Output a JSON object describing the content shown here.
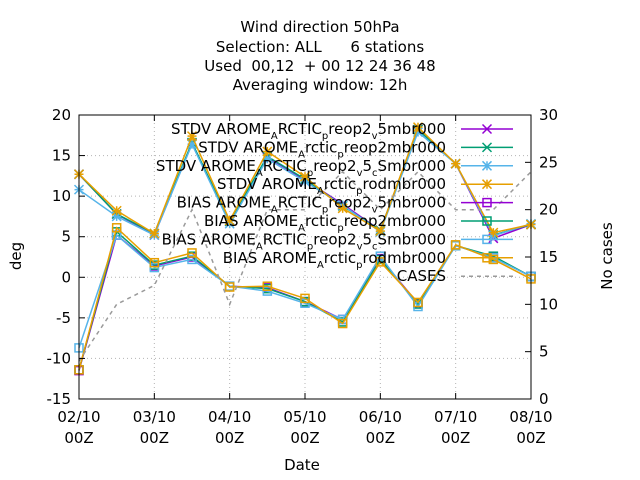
{
  "chart_data": {
    "type": "line",
    "title_lines": [
      "Wind direction 50hPa",
      "Selection: ALL      6 stations",
      "Used  00,12  + 00 12 24 36 48",
      "Averaging window: 12h"
    ],
    "xlabel": "Date",
    "ylabel": "deg",
    "y2label": "No cases",
    "ylim": [
      -15,
      20
    ],
    "y2lim": [
      0,
      30
    ],
    "xlim": [
      0,
      12
    ],
    "yticks": [
      "-15",
      "-10",
      "-5",
      "0",
      "5",
      "10",
      "15",
      "20"
    ],
    "y2ticks": [
      "0",
      "5",
      "10",
      "15",
      "20",
      "25",
      "30"
    ],
    "xticks": [
      {
        "x": 0,
        "line1": "02/10",
        "line2": "00Z"
      },
      {
        "x": 2,
        "line1": "03/10",
        "line2": "00Z"
      },
      {
        "x": 4,
        "line1": "04/10",
        "line2": "00Z"
      },
      {
        "x": 6,
        "line1": "05/10",
        "line2": "00Z"
      },
      {
        "x": 8,
        "line1": "06/10",
        "line2": "00Z"
      },
      {
        "x": 10,
        "line1": "07/10",
        "line2": "00Z"
      },
      {
        "x": 12,
        "line1": "08/10",
        "line2": "00Z"
      }
    ],
    "grid": true,
    "legend_position": "top-right",
    "x": [
      0,
      1,
      2,
      3,
      4,
      5,
      6,
      7,
      8,
      9,
      10,
      11,
      12
    ],
    "series": [
      {
        "legend": [
          [
            "STDV AROME",
            "n"
          ],
          [
            "A",
            "sub"
          ],
          [
            "RCTIC",
            "n"
          ],
          [
            "p",
            "sub"
          ],
          [
            "reop2",
            "n"
          ],
          [
            "v",
            "sub"
          ],
          [
            "5mbr000",
            "n"
          ]
        ],
        "color": "#9400d3",
        "marker": "x",
        "values": [
          12.7,
          7.8,
          5.2,
          16.5,
          6.9,
          14.8,
          12.0,
          9.0,
          5.8,
          18.2,
          14.0,
          4.8,
          6.5
        ]
      },
      {
        "legend": [
          [
            "STDV AROME",
            "n"
          ],
          [
            "A",
            "sub"
          ],
          [
            "rctic",
            "n"
          ],
          [
            "p",
            "sub"
          ],
          [
            "reop2mbr000",
            "n"
          ]
        ],
        "color": "#009e73",
        "marker": "x",
        "values": [
          12.7,
          7.8,
          5.4,
          16.6,
          6.9,
          14.9,
          12.1,
          8.8,
          5.8,
          18.2,
          14.0,
          5.2,
          6.5
        ]
      },
      {
        "legend": [
          [
            "STDV AROME",
            "n"
          ],
          [
            "A",
            "sub"
          ],
          [
            "RCTIC",
            "n"
          ],
          [
            "p",
            "sub"
          ],
          [
            "reop2",
            "n"
          ],
          [
            "v",
            "sub"
          ],
          [
            "5",
            "n"
          ],
          [
            "c",
            "sub"
          ],
          [
            "Smbr000",
            "n"
          ]
        ],
        "color": "#56b4e9",
        "marker": "star",
        "values": [
          10.8,
          7.5,
          5.2,
          16.4,
          6.6,
          14.6,
          11.8,
          8.9,
          5.6,
          17.9,
          14.0,
          5.1,
          6.6
        ]
      },
      {
        "legend": [
          [
            "STDV AROME",
            "n"
          ],
          [
            "A",
            "sub"
          ],
          [
            "rctic",
            "n"
          ],
          [
            "p",
            "sub"
          ],
          [
            "rodmbr000",
            "n"
          ]
        ],
        "color": "#e69f00",
        "marker": "star",
        "values": [
          12.7,
          8.2,
          5.4,
          17.4,
          7.0,
          15.5,
          12.4,
          8.5,
          5.7,
          18.5,
          14.0,
          5.5,
          6.5
        ]
      },
      {
        "legend": [
          [
            "BIAS AROME",
            "n"
          ],
          [
            "A",
            "sub"
          ],
          [
            "RCTIC",
            "n"
          ],
          [
            "p",
            "sub"
          ],
          [
            "reop2",
            "n"
          ],
          [
            "v",
            "sub"
          ],
          [
            "5mbr000",
            "n"
          ]
        ],
        "color": "#9400d3",
        "marker": "square",
        "values": [
          -11.5,
          5.2,
          1.4,
          2.5,
          -1.1,
          -1.3,
          -3.0,
          -5.2,
          2.3,
          -3.2,
          3.9,
          2.5,
          0.1
        ]
      },
      {
        "legend": [
          [
            "BIAS AROME",
            "n"
          ],
          [
            "A",
            "sub"
          ],
          [
            "rctic",
            "n"
          ],
          [
            "p",
            "sub"
          ],
          [
            "reop2mbr000",
            "n"
          ]
        ],
        "color": "#009e73",
        "marker": "square",
        "values": [
          -11.4,
          5.6,
          1.5,
          2.6,
          -1.1,
          -1.4,
          -3.0,
          -5.5,
          2.2,
          -3.3,
          3.9,
          2.6,
          0.1
        ]
      },
      {
        "legend": [
          [
            "BIAS AROME",
            "n"
          ],
          [
            "A",
            "sub"
          ],
          [
            "RCTIC",
            "n"
          ],
          [
            "p",
            "sub"
          ],
          [
            "reop2",
            "n"
          ],
          [
            "v",
            "sub"
          ],
          [
            "5",
            "n"
          ],
          [
            "c",
            "sub"
          ],
          [
            "Smbr000",
            "n"
          ]
        ],
        "color": "#56b4e9",
        "marker": "square",
        "values": [
          -8.7,
          5.2,
          1.2,
          2.2,
          -1.1,
          -1.7,
          -3.2,
          -5.2,
          2.6,
          -3.6,
          3.9,
          2.4,
          0.1
        ]
      },
      {
        "legend": [
          [
            "BIAS AROME",
            "n"
          ],
          [
            "A",
            "sub"
          ],
          [
            "rctic",
            "n"
          ],
          [
            "p",
            "sub"
          ],
          [
            "rodmbr000",
            "n"
          ]
        ],
        "color": "#e69f00",
        "marker": "square",
        "values": [
          -11.4,
          6.1,
          1.8,
          3.0,
          -1.2,
          -1.1,
          -2.6,
          -5.7,
          1.9,
          -3.1,
          4.0,
          2.2,
          -0.2
        ]
      },
      {
        "legend": [
          [
            "CASES",
            "n"
          ]
        ],
        "color": "#9a9a9a",
        "marker": "none",
        "dashed": true,
        "axis": "y2",
        "values": [
          4,
          10,
          12,
          20,
          10,
          20,
          20,
          24,
          20,
          24,
          20,
          20,
          24
        ]
      }
    ]
  }
}
